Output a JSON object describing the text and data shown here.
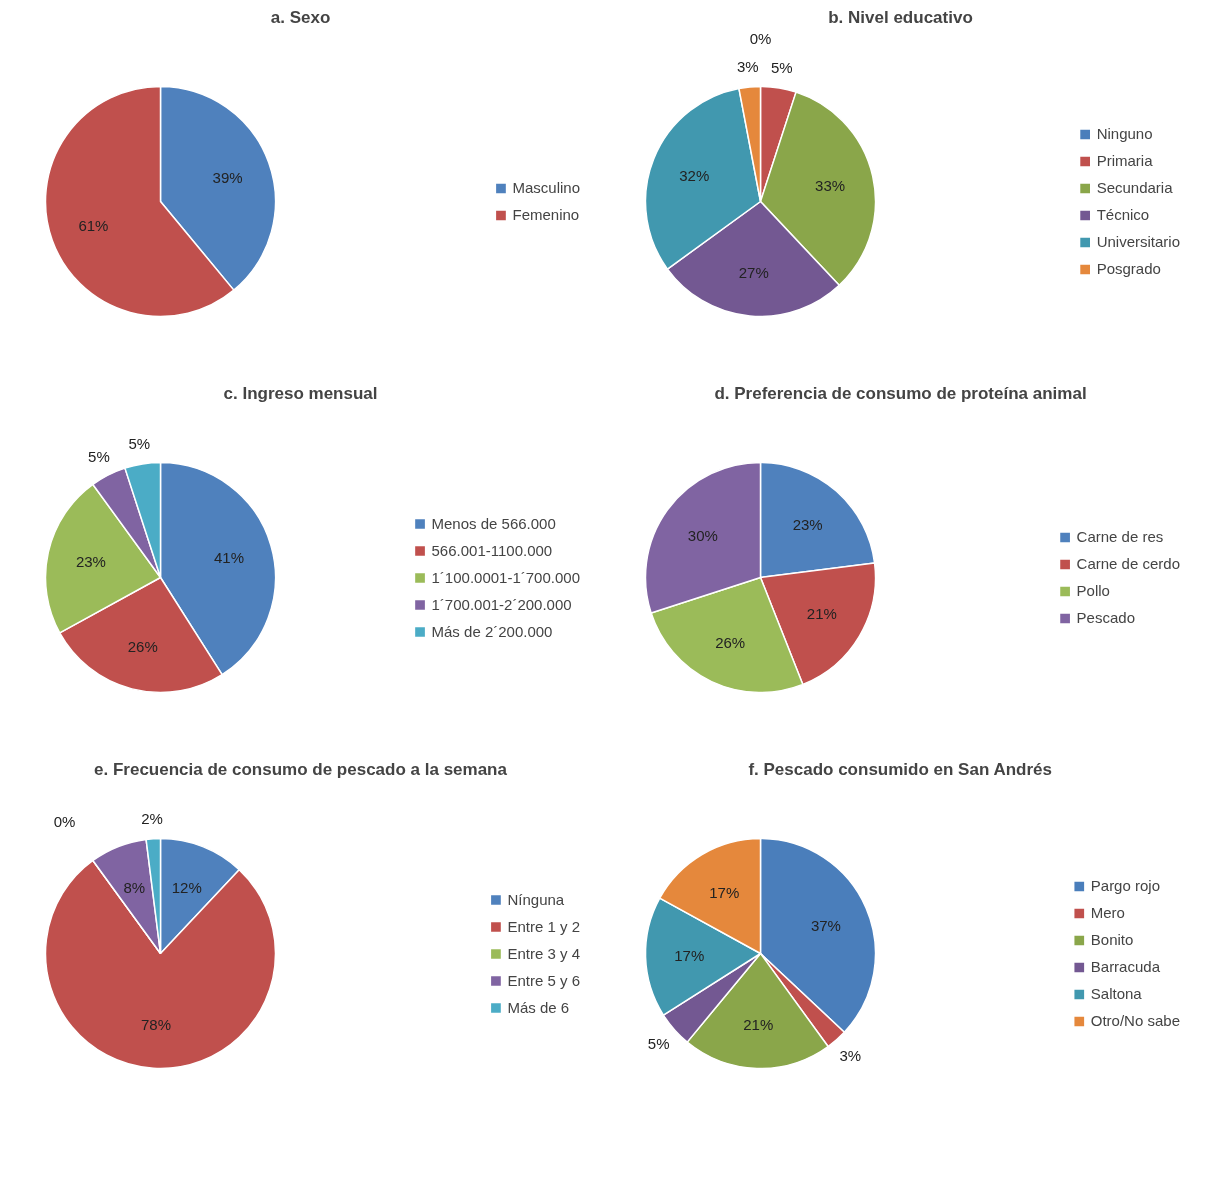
{
  "chart_data": [
    {
      "type": "pie",
      "title": "a. Sexo",
      "categories": [
        "Masculino",
        "Femenino"
      ],
      "values": [
        39,
        61
      ],
      "value_labels": [
        "39%",
        "61%"
      ],
      "colors": [
        "#4f81bd",
        "#c0504d"
      ],
      "legend": "right"
    },
    {
      "type": "pie",
      "title": "b. Nivel educativo",
      "categories": [
        "Ninguno",
        "Primaria",
        "Secundaria",
        "Técnico",
        "Universitario",
        "Posgrado"
      ],
      "values": [
        0,
        5,
        33,
        27,
        32,
        3
      ],
      "value_labels": [
        "0%",
        "5%",
        "33%",
        "27%",
        "32%",
        "3%"
      ],
      "colors": [
        "#4a7ebb",
        "#c0504d",
        "#8aa64a",
        "#735892",
        "#4198af",
        "#e5883c"
      ],
      "legend": "right"
    },
    {
      "type": "pie",
      "title": "c. Ingreso mensual",
      "categories": [
        "Menos de 566.000",
        "566.001-1100.000",
        "1´100.0001-1´700.000",
        "1´700.001-2´200.000",
        "Más de 2´200.000"
      ],
      "values": [
        41,
        26,
        23,
        5,
        5
      ],
      "value_labels": [
        "41%",
        "26%",
        "23%",
        "5%",
        "5%"
      ],
      "colors": [
        "#4f81bd",
        "#c0504d",
        "#9bbb59",
        "#8064a2",
        "#4bacc6"
      ],
      "legend": "right"
    },
    {
      "type": "pie",
      "title": "d. Preferencia de consumo de proteína animal",
      "categories": [
        "Carne de res",
        "Carne de cerdo",
        "Pollo",
        "Pescado"
      ],
      "values": [
        23,
        21,
        26,
        30
      ],
      "value_labels": [
        "23%",
        "21%",
        "26%",
        "30%"
      ],
      "colors": [
        "#4f81bd",
        "#c0504d",
        "#9bbb59",
        "#8064a2"
      ],
      "legend": "right"
    },
    {
      "type": "pie",
      "title": "e. Frecuencia de consumo de pescado a la semana",
      "categories": [
        "Nínguna",
        "Entre 1 y 2",
        "Entre 3 y 4",
        "Entre 5 y 6",
        "Más de 6"
      ],
      "values": [
        12,
        78,
        0,
        8,
        2
      ],
      "value_labels": [
        "12%",
        "78%",
        "0%",
        "8%",
        "2%"
      ],
      "colors": [
        "#4f81bd",
        "#c0504d",
        "#9bbb59",
        "#8064a2",
        "#4bacc6"
      ],
      "legend": "right"
    },
    {
      "type": "pie",
      "title": "f. Pescado consumido en San Andrés",
      "categories": [
        "Pargo rojo",
        "Mero",
        "Bonito",
        "Barracuda",
        "Saltona",
        "Otro/No sabe"
      ],
      "values": [
        37,
        3,
        21,
        5,
        17,
        17
      ],
      "value_labels": [
        "37%",
        "3%",
        "21%",
        "5%",
        "17%",
        "17%"
      ],
      "colors": [
        "#4a7ebb",
        "#c0504d",
        "#8aa64a",
        "#735892",
        "#4198af",
        "#e5883c"
      ],
      "legend": "right"
    }
  ]
}
